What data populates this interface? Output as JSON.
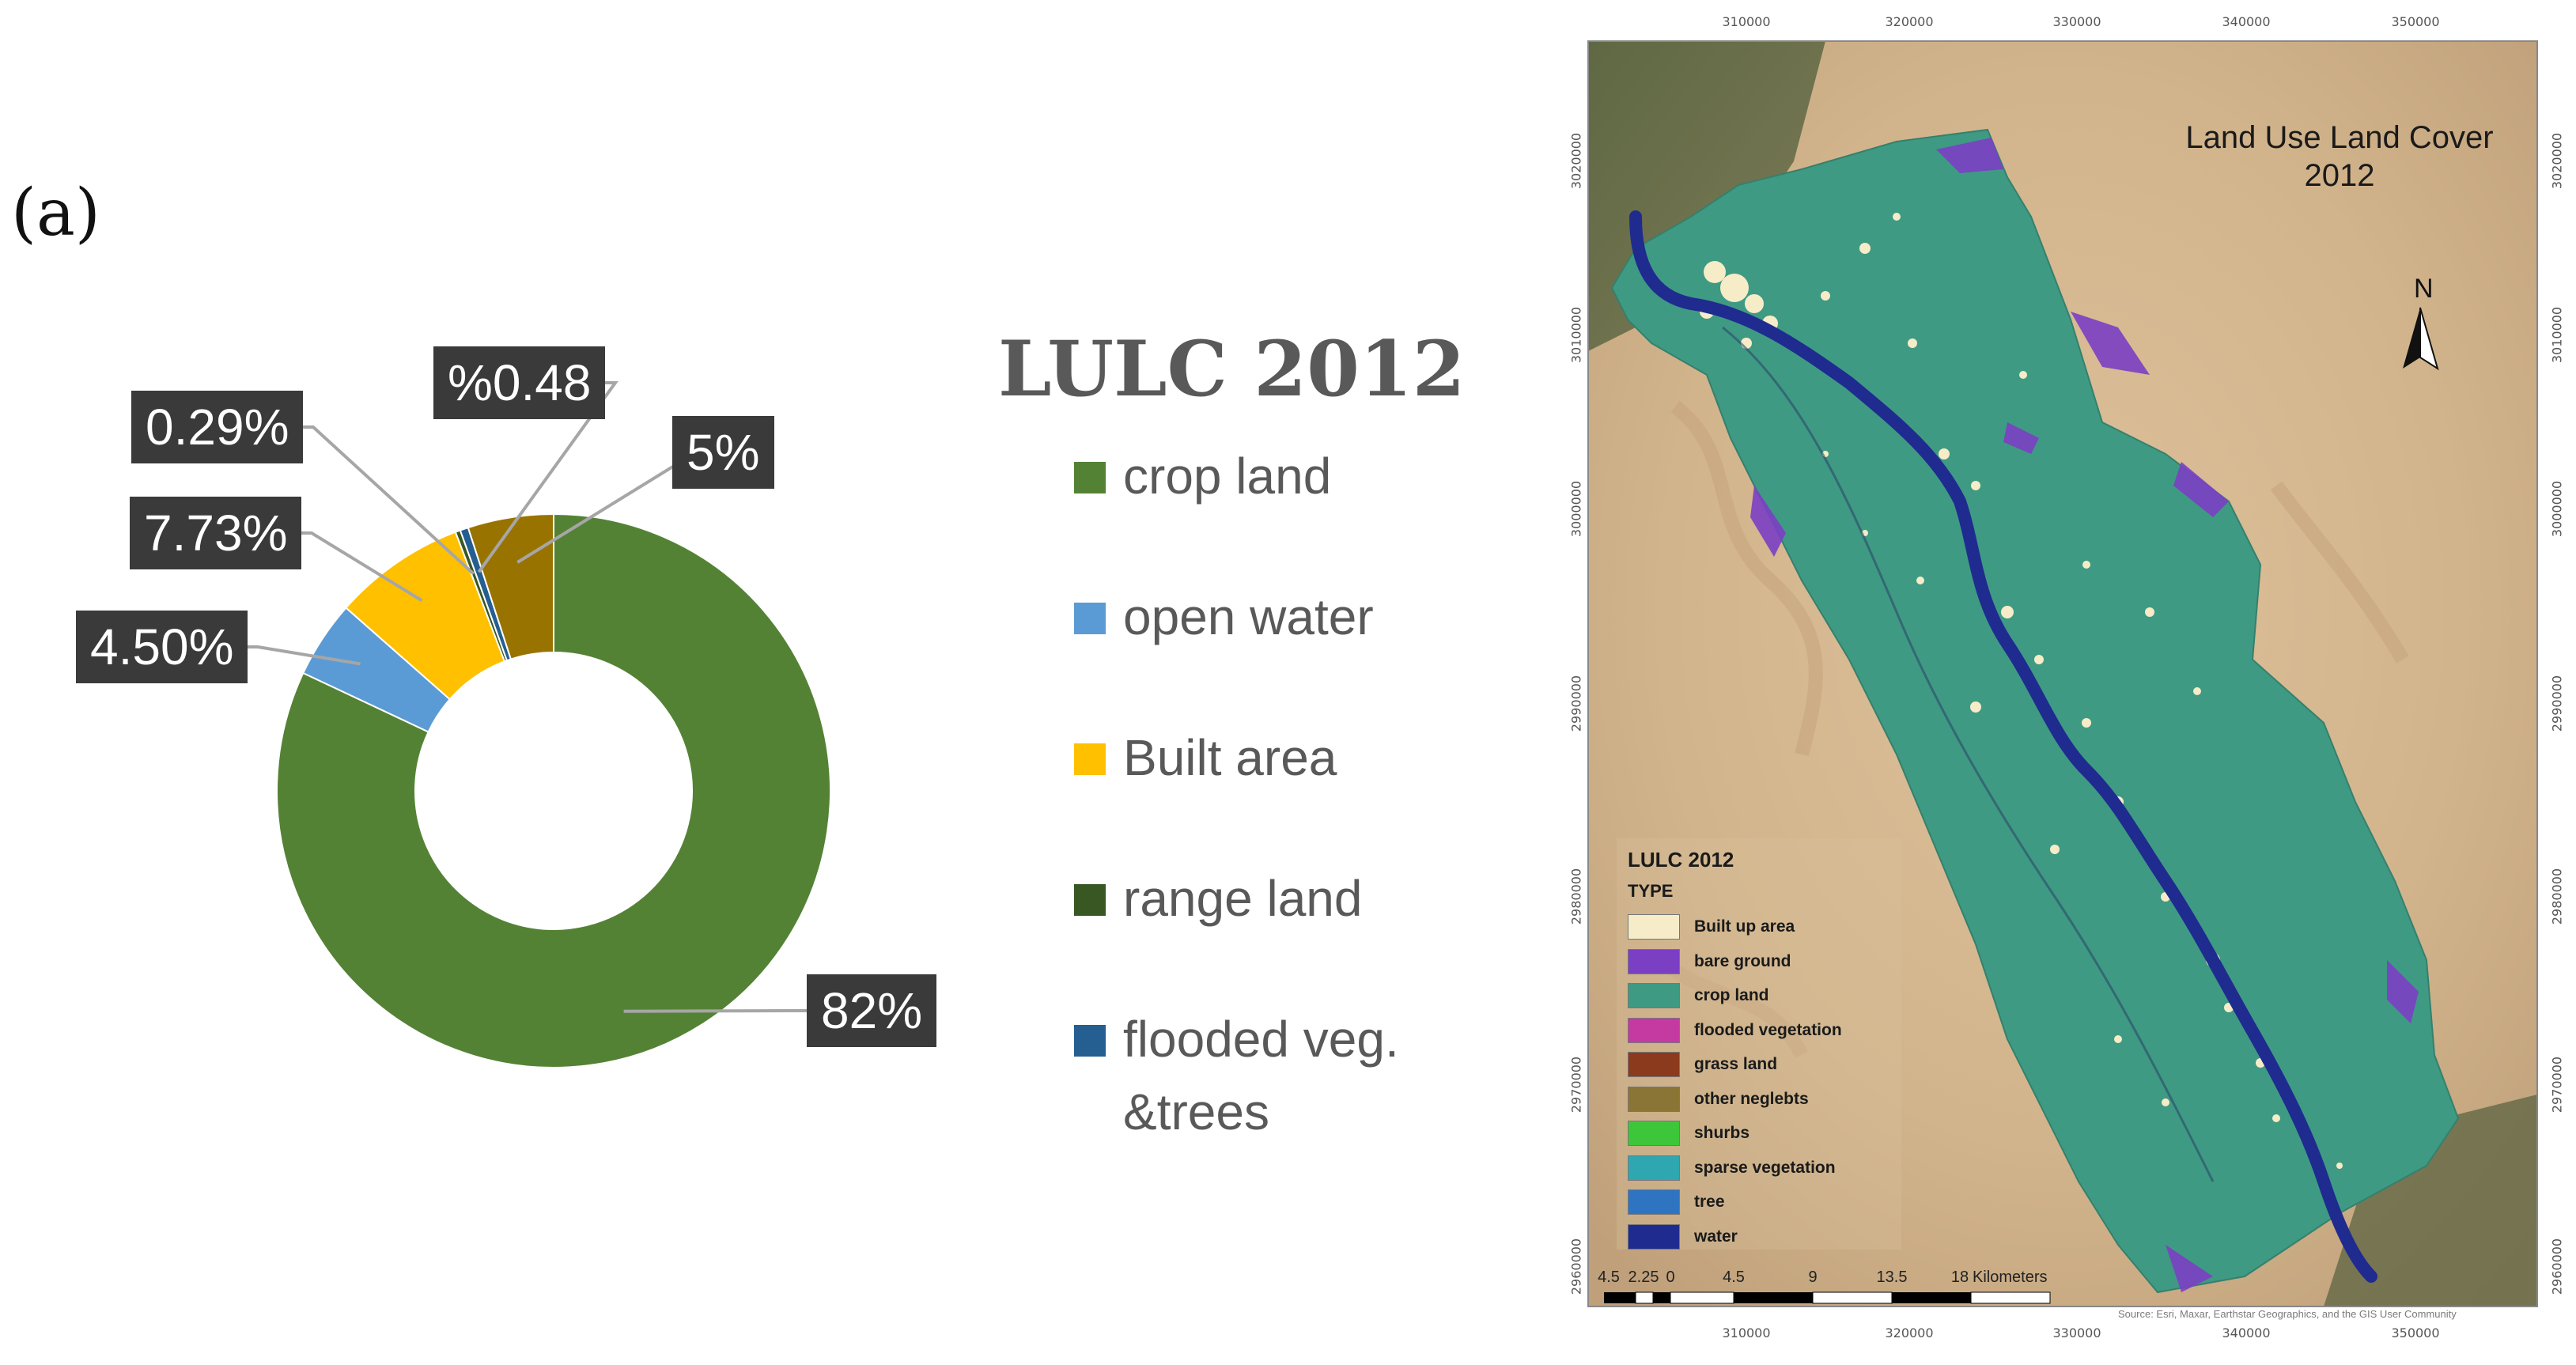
{
  "panel_label": "(a)",
  "chart_data": {
    "type": "pie",
    "donut": true,
    "title": "LULC 2012",
    "categories": [
      "crop land",
      "open water",
      "Built area",
      "range land",
      "flooded veg. &trees"
    ],
    "slices": [
      {
        "name": "crop land",
        "value": 82,
        "label": "82%",
        "color": "#548235"
      },
      {
        "name": "open water",
        "value": 4.5,
        "label": "4.50%",
        "color": "#5b9bd5"
      },
      {
        "name": "Built area",
        "value": 7.73,
        "label": "7.73%",
        "color": "#ffc000"
      },
      {
        "name": "range land",
        "value": 0.29,
        "label": "0.29%",
        "color": "#385723"
      },
      {
        "name": "flooded veg. &trees",
        "value": 0.48,
        "label": "%0.48",
        "color": "#255e91"
      },
      {
        "name": "",
        "value": 5,
        "label": "5%",
        "color": "#997300"
      }
    ],
    "legend": {
      "placement": "right",
      "items": [
        {
          "label": "crop land",
          "color": "#548235"
        },
        {
          "label": "open water",
          "color": "#5b9bd5"
        },
        {
          "label": "Built area",
          "color": "#ffc000"
        },
        {
          "label": "range land",
          "color": "#385723"
        },
        {
          "label": "flooded veg.\n&trees",
          "color": "#255e91"
        }
      ]
    }
  },
  "map": {
    "title": "Land Use Land Cover\n2012",
    "north_label": "N",
    "x_ticks": [
      "310000",
      "320000",
      "330000",
      "340000",
      "350000"
    ],
    "y_ticks": [
      "3020000",
      "3010000",
      "3000000",
      "2990000",
      "2980000",
      "2970000",
      "2960000"
    ],
    "legend_title": "LULC 2012",
    "legend_type": "TYPE",
    "legend_items": [
      {
        "label": "Built up area",
        "color": "#f7ecc8"
      },
      {
        "label": "bare ground",
        "color": "#7b3fc4"
      },
      {
        "label": "crop land",
        "color": "#3f9a83"
      },
      {
        "label": "flooded vegetation",
        "color": "#c43aa0"
      },
      {
        "label": "grass land",
        "color": "#8b3a1e"
      },
      {
        "label": "other neglebts",
        "color": "#8b7536"
      },
      {
        "label": "shurbs",
        "color": "#3ec63b"
      },
      {
        "label": "sparse vegetation",
        "color": "#2fa7b0"
      },
      {
        "label": "tree",
        "color": "#2f74c0"
      },
      {
        "label": "water",
        "color": "#1f2b8f"
      }
    ],
    "scale_labels": [
      "4.5",
      "2.25",
      "0",
      "4.5",
      "9",
      "13.5",
      "18"
    ],
    "scale_unit": "Kilometers",
    "credit": "Source: Esri, Maxar, Earthstar Geographics, and the GIS User Community"
  }
}
